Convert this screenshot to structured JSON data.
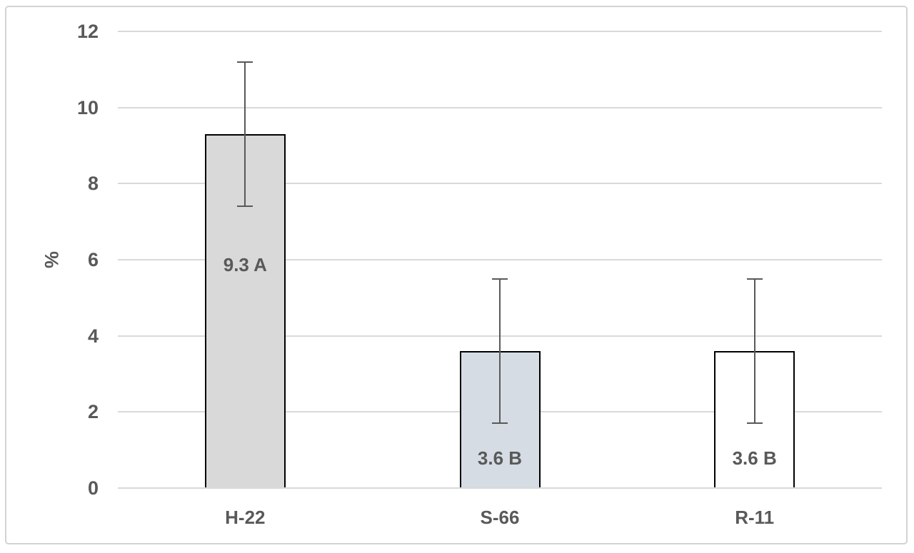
{
  "chart_data": {
    "type": "bar",
    "title": "",
    "xlabel": "",
    "ylabel": "%",
    "ylim": [
      0,
      12
    ],
    "yticks": [
      0,
      2,
      4,
      6,
      8,
      10,
      12
    ],
    "grid": true,
    "legend": "none",
    "categories": [
      "H-22",
      "S-66",
      "R-11"
    ],
    "values": [
      9.3,
      3.6,
      3.6
    ],
    "error_low": [
      7.4,
      1.7,
      1.7
    ],
    "error_high": [
      11.2,
      5.5,
      5.5
    ],
    "data_labels": [
      "9.3 A",
      "3.6 B",
      "3.6 B"
    ],
    "data_label_center_values": [
      5.87,
      0.79,
      0.79
    ],
    "bar_fills": [
      "#D9D9D9",
      "#D6DCE4",
      "#FFFFFF"
    ],
    "bar_border_color": "#000000",
    "gridline_color": "#D9D9D9",
    "error_bar_color": "#595959",
    "text_color": "#595959",
    "frame_border_color": "#D3D3D3"
  }
}
